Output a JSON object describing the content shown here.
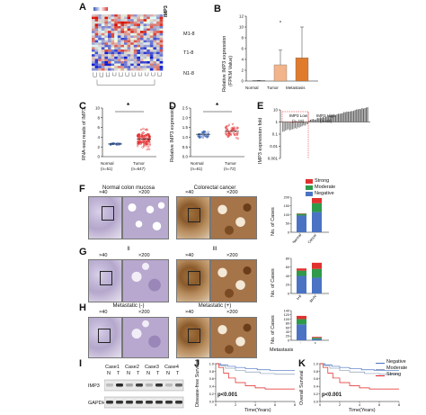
{
  "panel_letters": {
    "A": "A",
    "B": "B",
    "C": "C",
    "D": "D",
    "E": "E",
    "F": "F",
    "G": "G",
    "H": "H",
    "I": "I",
    "J": "J",
    "K": "K"
  },
  "panelA": {
    "gene_label": "IMP3",
    "row_groups": [
      "M1-8",
      "T1-8",
      "N1-8"
    ]
  },
  "panelB": {
    "ylabel_line1": "Relative IMP3 expression",
    "ylabel_line2": "(FPKM Value)",
    "chart_data": {
      "type": "bar",
      "categories": [
        "Normal",
        "Tumor",
        "Metastasis"
      ],
      "values": [
        0.1,
        3.0,
        4.3
      ],
      "error_upper": [
        0.1,
        5.7,
        10.0
      ],
      "ylim": [
        0,
        12
      ],
      "yticks": [
        "0",
        "2",
        "4",
        "6",
        "8",
        "10",
        "12"
      ],
      "colors": [
        "#888888",
        "#f2b48a",
        "#e07b2e"
      ]
    }
  },
  "panelC": {
    "ylabel": "RNA-seq reads of IMP3",
    "signif": "*",
    "chart_data": {
      "type": "scatter",
      "categories": [
        "Normal",
        "Tumor"
      ],
      "n_labels": [
        "(n=51)",
        "(n=647)"
      ],
      "ylim": [
        0,
        10
      ],
      "yticks": [
        "0",
        "2",
        "4",
        "6",
        "8",
        "10"
      ],
      "colors": [
        "#2e5db3",
        "#e02020"
      ]
    }
  },
  "panelD": {
    "ylabel": "Relative IMP3 expression",
    "signif": "*",
    "chart_data": {
      "type": "scatter",
      "categories": [
        "Normal",
        "Tumor"
      ],
      "n_labels": [
        "(n=61)",
        "(n=72)"
      ],
      "ylim": [
        0,
        2.5
      ],
      "yticks": [
        "0.0",
        "0.5",
        "1.0",
        "1.5",
        "2.0",
        "2.5"
      ],
      "colors": [
        "#2e5db3",
        "#e02020"
      ]
    }
  },
  "panelE": {
    "ylabel": "IMP3 expression fold",
    "low_label": "IMP3 Low",
    "low_n": "(n=19)",
    "high_label": "IMP3 High",
    "high_n": "(n=43)",
    "yticks": [
      "10",
      "1",
      "0.1",
      "0.01",
      "0.001"
    ],
    "chart_data": {
      "type": "bar"
    }
  },
  "panelF": {
    "left_header": "Normal colon mucosa",
    "right_header": "Colorectal cancer",
    "mags": [
      "×40",
      "×200",
      "×40",
      "×200"
    ]
  },
  "panelG": {
    "left_header": "II",
    "right_header": "III",
    "mags": [
      "×40",
      "×200",
      "×40",
      "×200"
    ]
  },
  "panelH": {
    "left_header": "Metastatic (-)",
    "right_header": "Metastatic (+)",
    "mags": [
      "×40",
      "×200",
      "×40",
      "×200"
    ]
  },
  "legend": {
    "items": [
      {
        "label": "Strong",
        "color": "#e0312f"
      },
      {
        "label": "Moderate",
        "color": "#2f9a4a"
      },
      {
        "label": "Negative",
        "color": "#4a73c4"
      }
    ]
  },
  "bar_F": {
    "ylabel": "No. of Cases",
    "xticks": [
      "Normal",
      "Cancer"
    ],
    "yticks": [
      "0",
      "50",
      "100",
      "150",
      "200"
    ],
    "chart_data": {
      "type": "bar",
      "categories": [
        "Normal",
        "Cancer"
      ],
      "series": [
        {
          "name": "Negative",
          "values": [
            95,
            115
          ]
        },
        {
          "name": "Moderate",
          "values": [
            10,
            50
          ]
        },
        {
          "name": "Strong",
          "values": [
            2,
            30
          ]
        }
      ],
      "ylim": [
        0,
        200
      ]
    }
  },
  "bar_G": {
    "ylabel": "No. of Cases",
    "xticks": [
      "I+II",
      "III+IV"
    ],
    "yticks": [
      "0",
      "20",
      "40",
      "60",
      "80"
    ],
    "chart_data": {
      "type": "bar",
      "categories": [
        "I+II",
        "III+IV"
      ],
      "series": [
        {
          "name": "Negative",
          "values": [
            40,
            36
          ]
        },
        {
          "name": "Moderate",
          "values": [
            12,
            20
          ]
        },
        {
          "name": "Strong",
          "values": [
            5,
            14
          ]
        }
      ],
      "ylim": [
        0,
        80
      ]
    }
  },
  "bar_H": {
    "ylabel": "No. of Cases",
    "xlabel": "Metastasis",
    "xticks": [
      "-",
      "+"
    ],
    "yticks": [
      "0",
      "20",
      "40",
      "60",
      "80",
      "100",
      "120",
      "140"
    ],
    "chart_data": {
      "type": "bar",
      "categories": [
        "-",
        "+"
      ],
      "series": [
        {
          "name": "Negative",
          "values": [
            75,
            6
          ]
        },
        {
          "name": "Moderate",
          "values": [
            25,
            6
          ]
        },
        {
          "name": "Strong",
          "values": [
            15,
            4
          ]
        }
      ],
      "ylim": [
        0,
        140
      ]
    }
  },
  "panelI": {
    "cases": [
      "Case1",
      "Case2",
      "Case3",
      "Case4"
    ],
    "lanes": [
      "N",
      "T",
      "N",
      "T",
      "N",
      "T",
      "N",
      "T"
    ],
    "rows": [
      "IMP3",
      "GAPDH"
    ]
  },
  "panelJ": {
    "ylabel": "Disease-free Survival",
    "xlabel": "Time(Years)",
    "pval": "p<0.001",
    "xticks": [
      "0",
      "2",
      "4",
      "6",
      "8"
    ],
    "yticks": [
      "0.0",
      "0.2",
      "0.4",
      "0.6",
      "0.8",
      "1.0"
    ]
  },
  "panelK": {
    "ylabel": "Overall Survival",
    "xlabel": "Time(Years)",
    "pval": "p<0.001",
    "xticks": [
      "0",
      "2",
      "4",
      "6",
      "8"
    ],
    "yticks": [
      "0.0",
      "0.2",
      "0.4",
      "0.6",
      "0.8",
      "1.0"
    ],
    "legend": [
      {
        "label": "Negative",
        "color": "#4a73c4"
      },
      {
        "label": "Moderate",
        "color": "#8aa0b8"
      },
      {
        "label": "Strong",
        "color": "#e02020"
      }
    ]
  }
}
